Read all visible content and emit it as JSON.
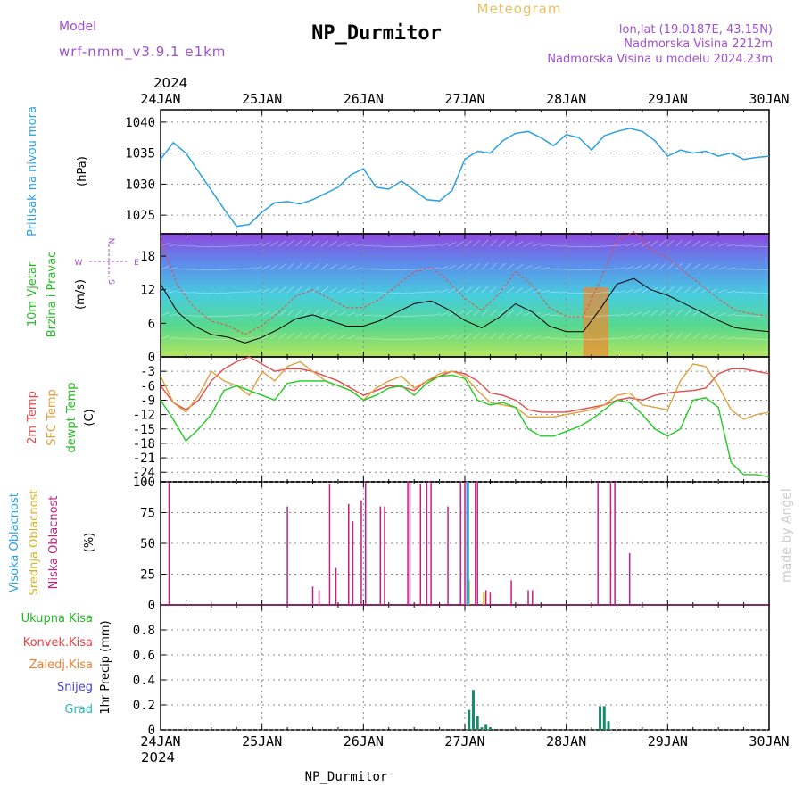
{
  "header": {
    "model_label": "Model",
    "model_name": "wrf-nmm_v3.9.1 e1km",
    "title": "NP_Durmitor",
    "subtitle": "Meteogram",
    "location_line": "lon,lat (19.0187E, 43.15N)",
    "elevation_line": "Nadmorska Visina 2212m",
    "model_elevation_line": "Nadmorska Visina u modelu 2024.23m",
    "year": "2024",
    "watermark": "made by Angel",
    "footer": "NP_Durmitor"
  },
  "time_axis": {
    "labels": [
      "24JAN",
      "25JAN",
      "26JAN",
      "27JAN",
      "28JAN",
      "29JAN",
      "30JAN"
    ]
  },
  "wind_compass": {
    "n": "N",
    "s": "S",
    "w": "W",
    "e": "E"
  },
  "colors": {
    "pressure": "#2aa0e0",
    "temp_2m": "#e84a4a",
    "temp_sfc": "#e0a040",
    "dewpoint": "#22cc22",
    "cloud_high": "#2aa0e0",
    "cloud_mid": "#d8b030",
    "cloud_low": "#c02080",
    "precip_total": "#22bb22",
    "precip_conv": "#e84040",
    "precip_frz": "#f08030",
    "precip_snow": "#4444dd",
    "precip_graupel": "#22bbbb"
  },
  "chart_data": [
    {
      "type": "line",
      "panel": "pressure",
      "label_colored": "Pritisak na nivou mora",
      "ylabel": "(hPa)",
      "xlim": [
        0,
        144
      ],
      "ylim": [
        1022,
        1042
      ],
      "yticks": [
        1025,
        1030,
        1035,
        1040
      ],
      "series": [
        {
          "x": [
            0,
            3,
            6,
            9,
            12,
            15,
            18,
            21,
            24,
            27,
            30,
            33,
            36,
            39,
            42,
            45,
            48,
            51,
            54,
            57,
            60,
            63,
            66,
            69,
            72,
            75,
            78,
            81,
            84,
            87,
            90,
            93,
            96,
            99,
            102,
            105,
            108,
            111,
            114,
            117,
            120,
            123,
            126,
            129,
            132,
            135,
            138,
            141,
            144
          ],
          "values": [
            1034,
            1036.7,
            1035,
            1032,
            1029,
            1026,
            1023.2,
            1023.5,
            1025.5,
            1027,
            1027.2,
            1026.8,
            1027.5,
            1028.5,
            1029.5,
            1031.5,
            1032.5,
            1029.5,
            1029.2,
            1030.5,
            1029,
            1027.5,
            1027.3,
            1029,
            1034,
            1035.3,
            1035,
            1037,
            1038.2,
            1038.5,
            1037.5,
            1036.2,
            1038,
            1037.5,
            1035.5,
            1037.8,
            1038.5,
            1039,
            1038.5,
            1037,
            1034.5,
            1035.5,
            1035,
            1035.3,
            1034.5,
            1035,
            1034,
            1034.3,
            1034.5
          ]
        }
      ]
    },
    {
      "type": "line",
      "panel": "wind",
      "label_colored_1": "10m Vjetar",
      "label_colored_2": "Brzina i Pravac",
      "ylabel": "(m/s)",
      "xlim": [
        0,
        144
      ],
      "ylim": [
        0,
        22
      ],
      "yticks": [
        0,
        6,
        12,
        18
      ],
      "series": [
        {
          "name": "speed",
          "x": [
            0,
            4,
            8,
            12,
            16,
            20,
            24,
            28,
            32,
            36,
            40,
            44,
            48,
            52,
            56,
            60,
            64,
            68,
            72,
            76,
            80,
            84,
            88,
            92,
            96,
            100,
            104,
            108,
            112,
            116,
            120,
            124,
            128,
            132,
            136,
            140,
            144
          ],
          "values": [
            13,
            8,
            5.5,
            4,
            3.5,
            2.5,
            3.5,
            5,
            6.8,
            7.5,
            6.5,
            5.5,
            5.5,
            6.5,
            8,
            9.5,
            10,
            8.5,
            6.5,
            5.2,
            7,
            9.5,
            8,
            5.5,
            4.5,
            4.5,
            8.5,
            13,
            14,
            12,
            11,
            9.5,
            8,
            6.5,
            5.2,
            4.8,
            4.5
          ]
        }
      ]
    },
    {
      "type": "line",
      "panel": "temperature",
      "label_colored_1": "2m Temp",
      "label_colored_2": "SFC Temp",
      "label_colored_3": "dewpt Temp",
      "ylabel": "(C)",
      "xlim": [
        0,
        144
      ],
      "ylim": [
        -26,
        0
      ],
      "yticks": [
        -3,
        -6,
        -9,
        -12,
        -15,
        -18,
        -21,
        -24
      ],
      "series": [
        {
          "name": "2m Temp",
          "x": [
            0,
            3,
            6,
            9,
            12,
            15,
            18,
            21,
            24,
            27,
            30,
            33,
            36,
            39,
            42,
            45,
            48,
            51,
            54,
            57,
            60,
            63,
            66,
            69,
            72,
            75,
            78,
            81,
            84,
            87,
            90,
            93,
            96,
            99,
            102,
            105,
            108,
            111,
            114,
            117,
            120,
            123,
            126,
            129,
            132,
            135,
            138,
            141,
            144
          ],
          "values": [
            -6,
            -9.5,
            -11,
            -9,
            -5,
            -2.5,
            -1,
            0,
            -1.5,
            -3,
            -2.5,
            -2.5,
            -3,
            -4,
            -5,
            -6.5,
            -8,
            -7,
            -6,
            -6.2,
            -7,
            -5,
            -4,
            -3,
            -3.5,
            -5,
            -7.5,
            -8,
            -9,
            -11,
            -11.5,
            -11.5,
            -11.5,
            -11,
            -10.5,
            -10,
            -9,
            -8.5,
            -9,
            -8,
            -7.5,
            -7.2,
            -7,
            -6.5,
            -3.5,
            -2.5,
            -2.5,
            -3,
            -3.5
          ]
        },
        {
          "name": "SFC Temp",
          "x": [
            0,
            3,
            6,
            9,
            12,
            15,
            18,
            21,
            24,
            27,
            30,
            33,
            36,
            39,
            42,
            45,
            48,
            51,
            54,
            57,
            60,
            63,
            66,
            69,
            72,
            75,
            78,
            81,
            84,
            87,
            90,
            93,
            96,
            99,
            102,
            105,
            108,
            111,
            114,
            117,
            120,
            123,
            126,
            129,
            132,
            135,
            138,
            141,
            144
          ],
          "values": [
            -4,
            -9.5,
            -11.5,
            -8,
            -3,
            -5,
            -6,
            -8,
            -3,
            -5,
            -2,
            -1,
            -3,
            -5,
            -6,
            -7,
            -9,
            -6.5,
            -5,
            -4,
            -6.5,
            -5,
            -3.5,
            -3,
            -4,
            -7,
            -9.5,
            -10,
            -10.5,
            -12.5,
            -12.5,
            -12.5,
            -12,
            -11.5,
            -11,
            -10,
            -8,
            -7.5,
            -10,
            -10.5,
            -11,
            -5,
            -1.5,
            -2,
            -6,
            -11,
            -13,
            -12,
            -11.5
          ]
        },
        {
          "name": "dewpt Temp",
          "x": [
            0,
            3,
            6,
            9,
            12,
            15,
            18,
            21,
            24,
            27,
            30,
            33,
            36,
            39,
            42,
            45,
            48,
            51,
            54,
            57,
            60,
            63,
            66,
            69,
            72,
            75,
            78,
            81,
            84,
            87,
            90,
            93,
            96,
            99,
            102,
            105,
            108,
            111,
            114,
            117,
            120,
            123,
            126,
            129,
            132,
            135,
            138,
            141,
            144
          ],
          "values": [
            -9,
            -13,
            -17.5,
            -15,
            -12,
            -7,
            -6,
            -7,
            -8,
            -9,
            -5.5,
            -5,
            -5,
            -5,
            -6,
            -7,
            -9,
            -8,
            -6.5,
            -6,
            -8,
            -5.5,
            -4,
            -3.8,
            -4.5,
            -9,
            -10,
            -9.5,
            -10.5,
            -15,
            -16.5,
            -16.5,
            -15.5,
            -14.5,
            -13,
            -11,
            -9,
            -9.5,
            -12,
            -15,
            -16.5,
            -15,
            -9,
            -8.5,
            -10.5,
            -22,
            -24.5,
            -24.5,
            -25
          ]
        }
      ]
    },
    {
      "type": "bar",
      "panel": "cloud",
      "label_colored_1": "Visoka Oblacnost",
      "label_colored_2": "Srednja Oblacnost",
      "label_colored_3": "Niska Oblacnost",
      "ylabel": "(%)",
      "xlim": [
        0,
        144
      ],
      "ylim": [
        0,
        100
      ],
      "yticks": [
        0,
        25,
        50,
        75,
        100
      ],
      "series": [
        {
          "name": "Niska Oblacnost",
          "x": [
            2,
            30,
            36,
            37.5,
            40,
            41.5,
            44.5,
            45.5,
            47.5,
            48.5,
            52,
            53,
            58.5,
            59,
            61.5,
            63,
            64,
            68,
            71,
            72,
            72.5,
            73,
            74.5,
            75,
            77,
            78,
            83,
            87,
            88,
            103.5,
            106.5,
            107.5,
            111
          ],
          "values": [
            100,
            80,
            15,
            12,
            98,
            30,
            82,
            68,
            85,
            100,
            80,
            80,
            100,
            100,
            98,
            100,
            100,
            80,
            100,
            100,
            100,
            20,
            100,
            100,
            12,
            10,
            20,
            12,
            12,
            100,
            100,
            100,
            42
          ]
        },
        {
          "name": "Srednja Oblacnost",
          "x": [
            72.5,
            73,
            76.5
          ],
          "values": [
            70,
            20,
            10
          ]
        },
        {
          "name": "Visoka Oblacnost",
          "x": [
            72.7
          ],
          "values": [
            100
          ]
        }
      ]
    },
    {
      "type": "bar",
      "panel": "precip",
      "ylabel": "1hr Precip (mm)",
      "xlim": [
        0,
        144
      ],
      "ylim": [
        0,
        1
      ],
      "yticks": [
        0,
        0.2,
        0.4,
        0.6,
        0.8
      ],
      "legend": [
        "Ukupna Kisa",
        "Konvek.Kisa",
        "Zaledj.Kisa",
        "Snijeg",
        "Grad"
      ],
      "series": [
        {
          "name": "Snijeg",
          "x": [
            73,
            74,
            75,
            76,
            77,
            78,
            104,
            105,
            106
          ],
          "values": [
            0.16,
            0.32,
            0.11,
            0.02,
            0.04,
            0.02,
            0.19,
            0.19,
            0.07
          ]
        }
      ]
    }
  ]
}
